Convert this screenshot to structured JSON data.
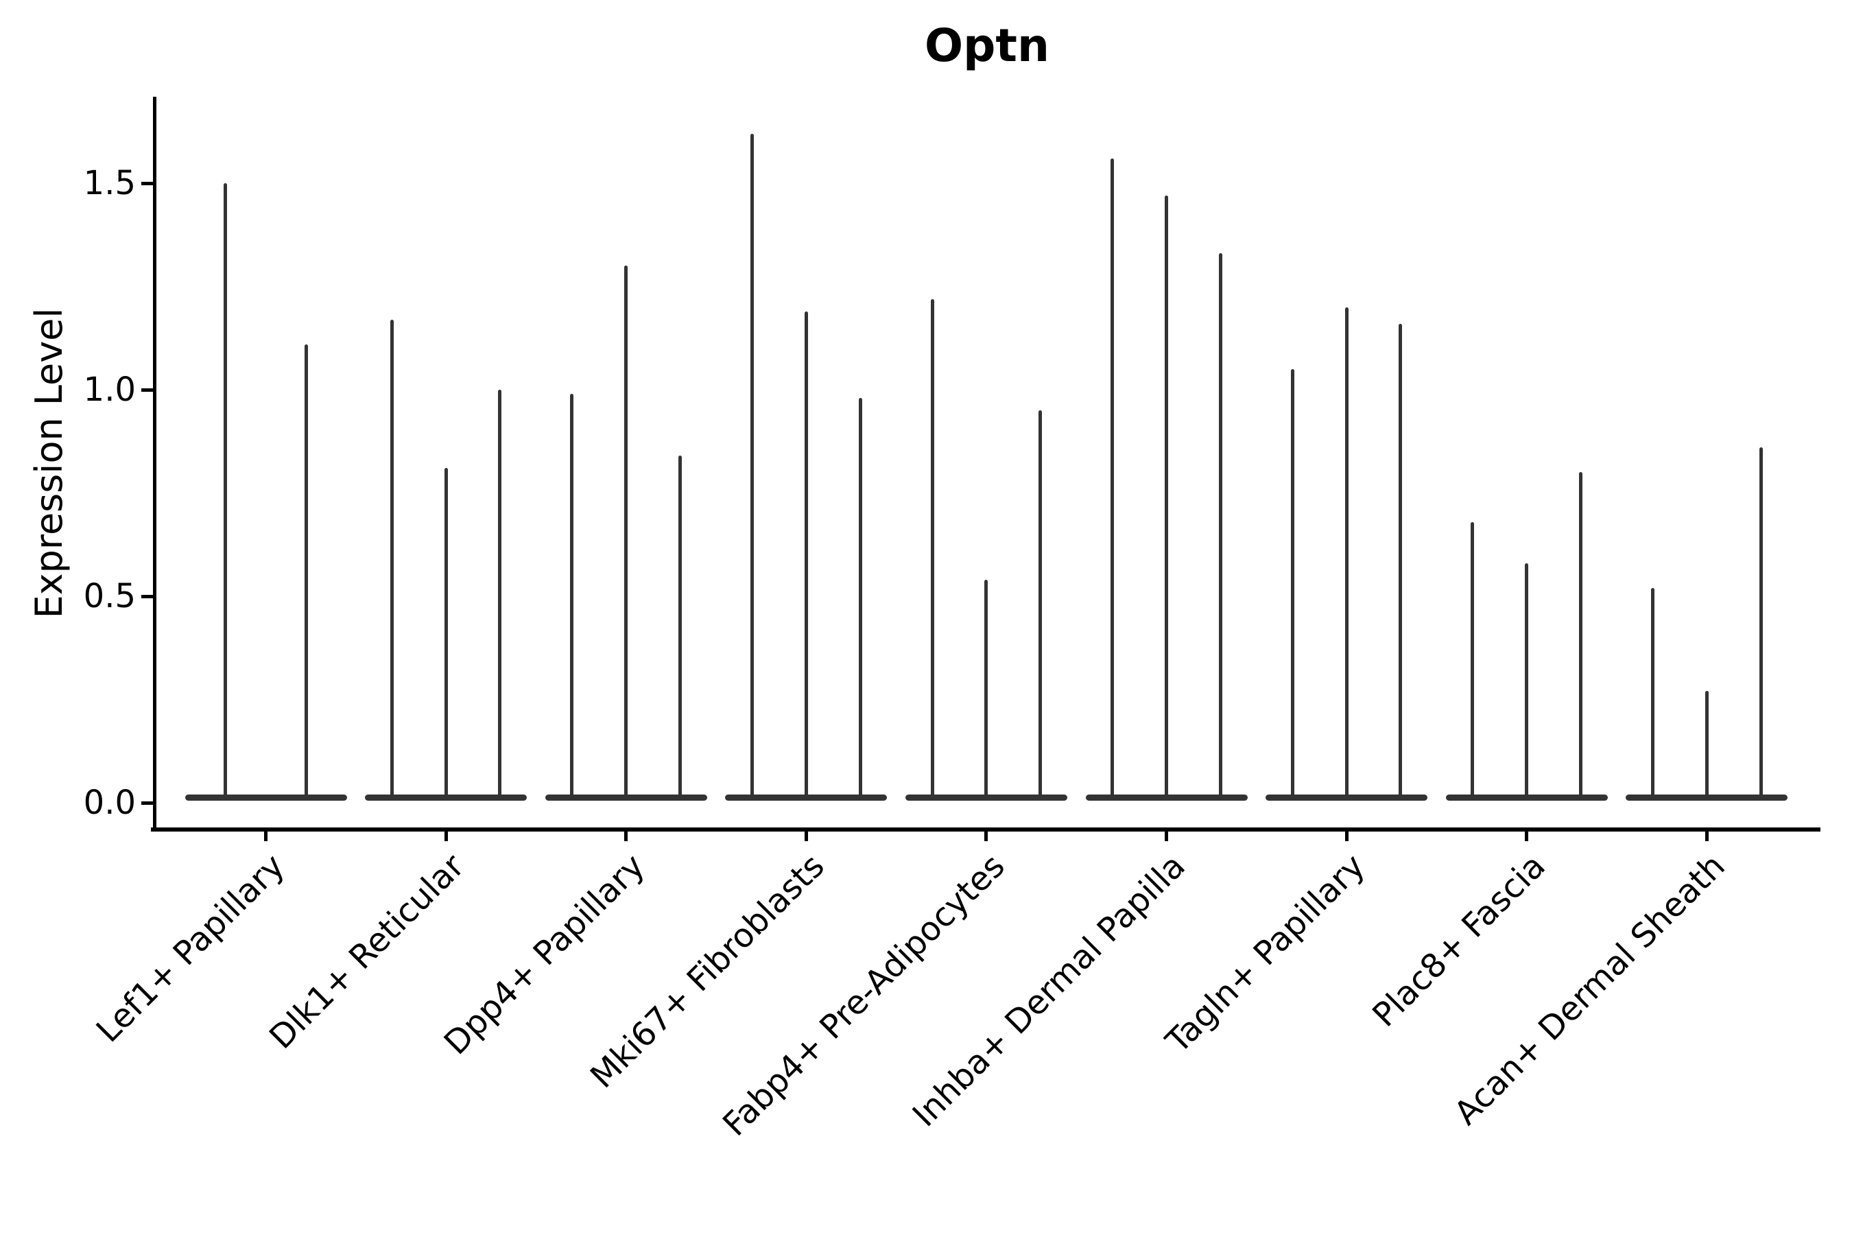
{
  "chart_data": {
    "type": "violin",
    "title": "Optn",
    "ylabel": "Expression Level",
    "xlabel": "",
    "ytick_labels": [
      "0.0",
      "0.5",
      "1.0",
      "1.5"
    ],
    "ytick_values": [
      0.0,
      0.5,
      1.0,
      1.5
    ],
    "ylim": [
      0,
      1.72
    ],
    "grid": false,
    "legend_position": "none",
    "violin_style": "narrow spikes with wide flattened base at zero expression",
    "categories": [
      "Lef1+ Papillary",
      "Dlk1+ Reticular",
      "Dpp4+ Papillary",
      "Mki67+ Fibroblasts",
      "Fabp4+ Pre-Adipocytes",
      "Inhba+ Dermal Papilla",
      "Tagln+ Papillary",
      "Plac8+ Fascia",
      "Acan+ Dermal Sheath"
    ],
    "violin_max_values": [
      [
        1.5,
        1.11
      ],
      [
        1.17,
        0.81,
        1.0
      ],
      [
        0.99,
        1.3,
        0.84
      ],
      [
        1.62,
        1.19,
        0.98
      ],
      [
        1.22,
        0.54,
        0.95
      ],
      [
        1.56,
        1.47,
        1.33
      ],
      [
        1.05,
        1.2,
        1.16
      ],
      [
        0.68,
        0.58,
        0.8
      ],
      [
        0.52,
        0.27,
        0.86
      ]
    ],
    "colors": {
      "violin": "#333333",
      "axis": "#000000",
      "text": "#000000",
      "background": "#ffffff"
    }
  }
}
